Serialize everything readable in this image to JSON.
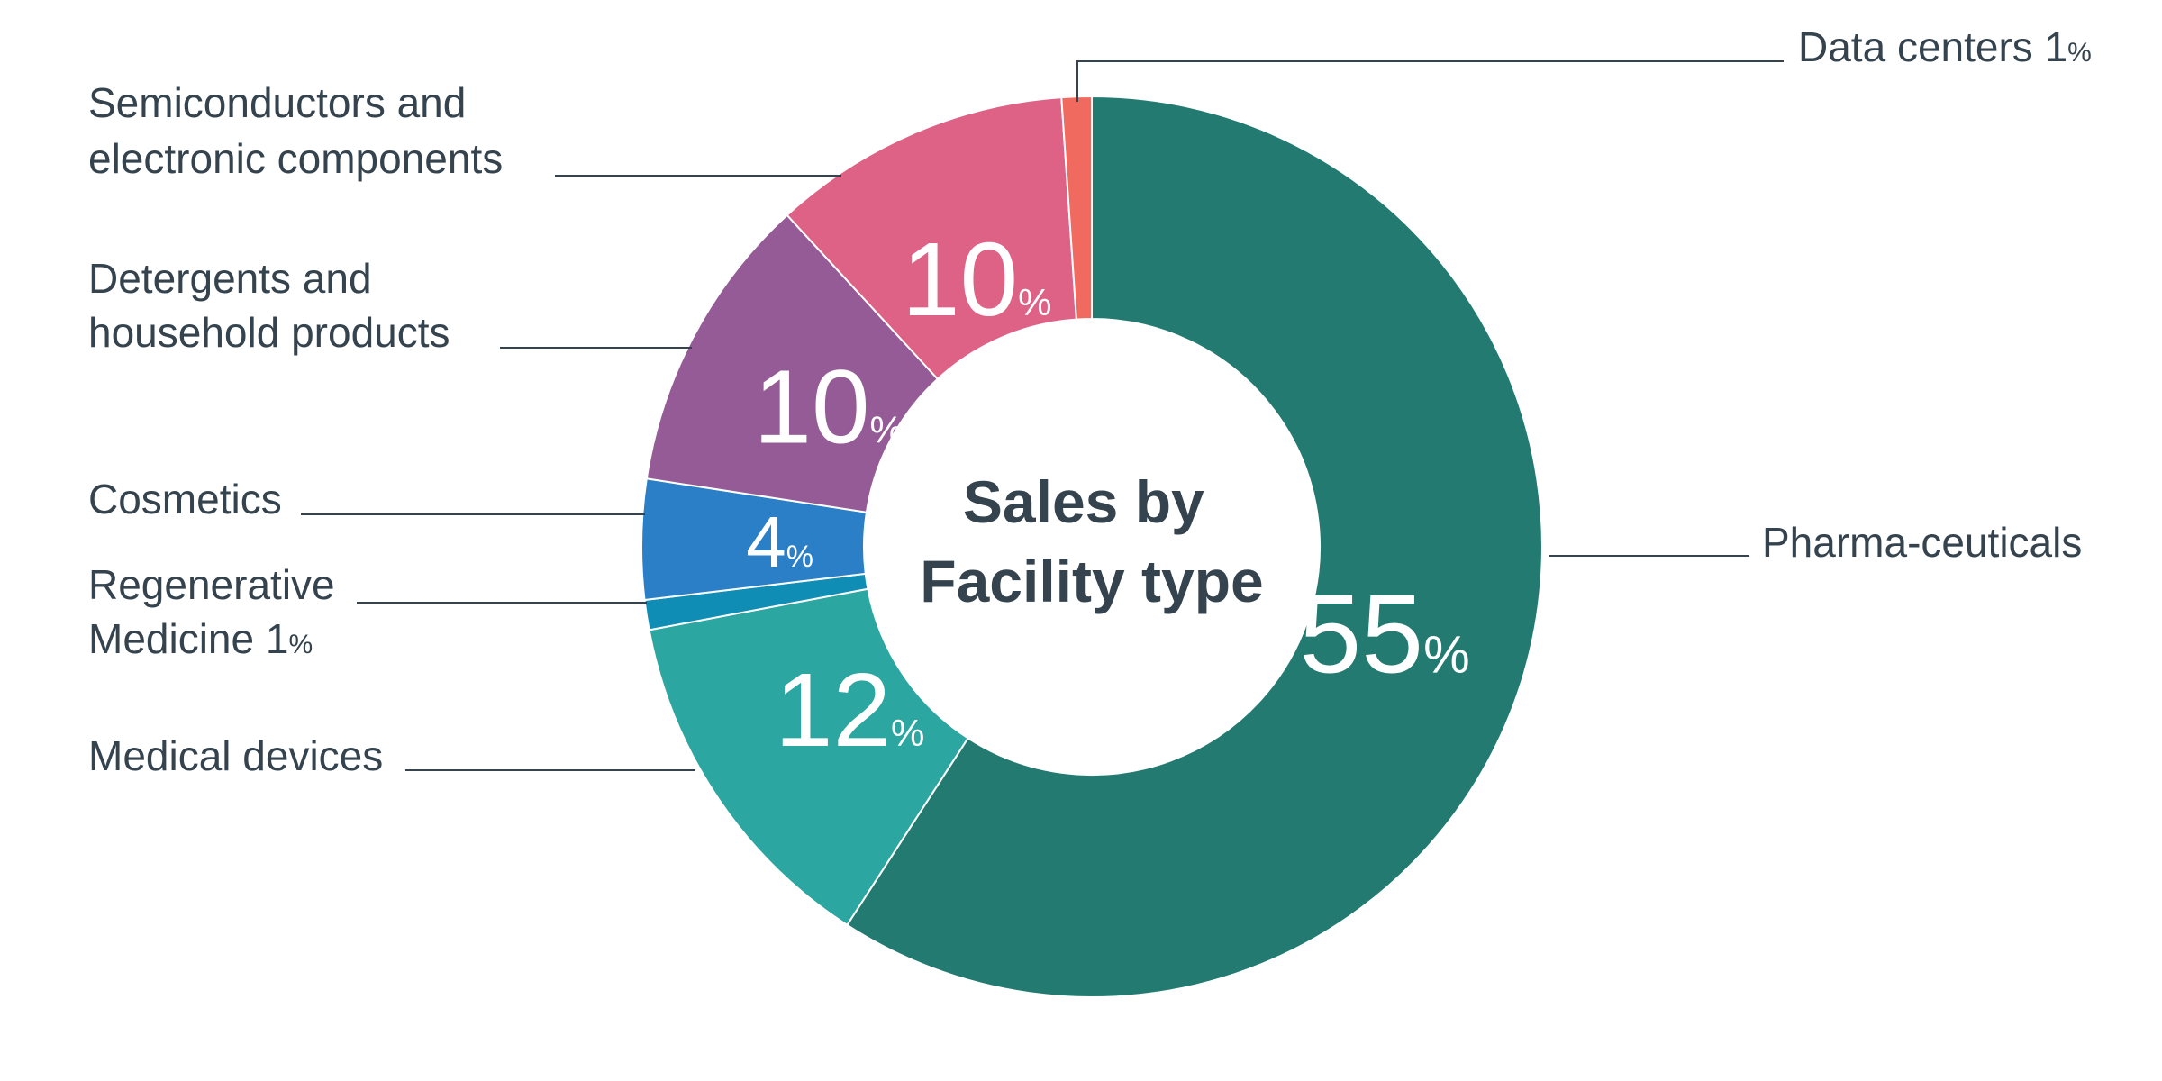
{
  "chart_data": {
    "type": "pie",
    "style": "donut",
    "title": "Sales by Facility type",
    "title_lines": [
      "Sales by",
      "Facility type"
    ],
    "unit": "%",
    "slices": [
      {
        "label": "Pharma-ceuticals",
        "label_lines": [
          "Pharma-ceuticals"
        ],
        "value": 55,
        "color": "#237a70",
        "inner_value": "55"
      },
      {
        "label": "Medical devices",
        "label_lines": [
          "Medical devices"
        ],
        "value": 12,
        "color": "#2ba6a1",
        "inner_value": "12"
      },
      {
        "label": "Regenerative Medicine",
        "label_lines": [
          "Regenerative",
          "Medicine 1"
        ],
        "value": 1,
        "color": "#0f8db4",
        "inner_value": ""
      },
      {
        "label": "Cosmetics",
        "label_lines": [
          "Cosmetics"
        ],
        "value": 4,
        "color": "#2a7fc6",
        "inner_value": "4"
      },
      {
        "label": "Detergents and household products",
        "label_lines": [
          "Detergents and",
          "household products"
        ],
        "value": 10,
        "color": "#955b96",
        "inner_value": "10"
      },
      {
        "label": "Semiconductors and electronic components",
        "label_lines": [
          "Semiconductors and",
          "electronic components"
        ],
        "value": 10,
        "color": "#de6186",
        "inner_value": "10"
      },
      {
        "label": "Data centers",
        "label_lines": [
          "Data centers 1"
        ],
        "value": 1,
        "color": "#f06a5f",
        "inner_value": ""
      }
    ]
  }
}
